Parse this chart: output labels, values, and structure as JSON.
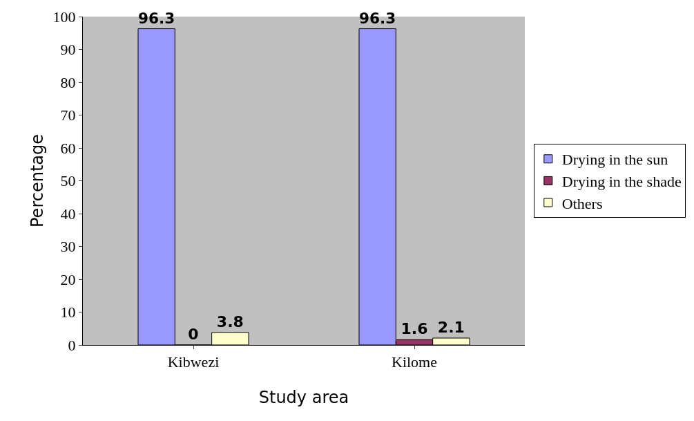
{
  "chart_data": {
    "type": "bar",
    "xlabel": "Study area",
    "ylabel": "Percentage",
    "categories": [
      "Kibwezi",
      "Kilome"
    ],
    "series": [
      {
        "name": "Drying in the sun",
        "color": "#9999ff",
        "values": [
          96.3,
          96.3
        ]
      },
      {
        "name": "Drying in the shade",
        "color": "#993366",
        "values": [
          0,
          1.6
        ]
      },
      {
        "name": "Others",
        "color": "#ffffcc",
        "values": [
          3.8,
          2.1
        ]
      }
    ],
    "ylim": [
      0,
      100
    ],
    "yticks": [
      0,
      10,
      20,
      30,
      40,
      50,
      60,
      70,
      80,
      90,
      100
    ],
    "data_labels": true,
    "legend": "right",
    "grid": false
  }
}
